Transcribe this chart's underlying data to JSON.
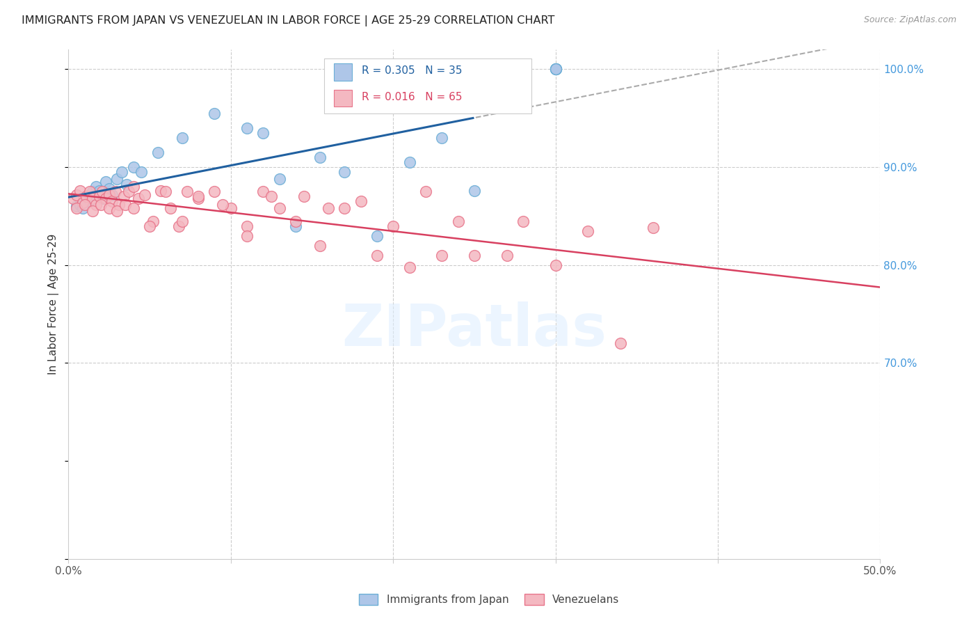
{
  "title": "IMMIGRANTS FROM JAPAN VS VENEZUELAN IN LABOR FORCE | AGE 25-29 CORRELATION CHART",
  "source_text": "Source: ZipAtlas.com",
  "ylabel": "In Labor Force | Age 25-29",
  "xlim": [
    0.0,
    0.5
  ],
  "ylim": [
    0.5,
    1.02
  ],
  "grid_color": "#cccccc",
  "background_color": "#ffffff",
  "watermark": "ZIPatlas",
  "japan_color": "#aec6e8",
  "japan_edge_color": "#6baed6",
  "venezuela_color": "#f4b8c1",
  "venezuela_edge_color": "#e8748a",
  "japan_R": 0.305,
  "japan_N": 35,
  "venezuela_R": 0.016,
  "venezuela_N": 65,
  "japan_line_color": "#2060a0",
  "venezuela_line_color": "#d84060",
  "japan_trend_dashed_color": "#aaaaaa",
  "legend_R_color": "#2060a0",
  "legend_R2_color": "#d84060",
  "japan_x": [
    0.005,
    0.007,
    0.009,
    0.011,
    0.013,
    0.015,
    0.017,
    0.019,
    0.021,
    0.023,
    0.025,
    0.027,
    0.03,
    0.033,
    0.036,
    0.04,
    0.045,
    0.055,
    0.07,
    0.09,
    0.11,
    0.12,
    0.13,
    0.14,
    0.155,
    0.17,
    0.19,
    0.21,
    0.23,
    0.25,
    0.3,
    0.3,
    0.3,
    0.3,
    0.3
  ],
  "japan_y": [
    0.86,
    0.862,
    0.858,
    0.87,
    0.866,
    0.875,
    0.88,
    0.876,
    0.868,
    0.885,
    0.878,
    0.872,
    0.888,
    0.895,
    0.882,
    0.9,
    0.895,
    0.915,
    0.93,
    0.955,
    0.94,
    0.935,
    0.888,
    0.84,
    0.91,
    0.895,
    0.83,
    0.905,
    0.93,
    0.876,
    1.0,
    1.0,
    1.0,
    1.0,
    1.0
  ],
  "venezuela_x": [
    0.003,
    0.005,
    0.007,
    0.009,
    0.011,
    0.013,
    0.015,
    0.017,
    0.019,
    0.021,
    0.023,
    0.025,
    0.027,
    0.029,
    0.031,
    0.034,
    0.037,
    0.04,
    0.043,
    0.047,
    0.052,
    0.057,
    0.063,
    0.068,
    0.073,
    0.08,
    0.09,
    0.1,
    0.11,
    0.12,
    0.13,
    0.145,
    0.16,
    0.18,
    0.2,
    0.22,
    0.24,
    0.28,
    0.32,
    0.36,
    0.005,
    0.01,
    0.015,
    0.02,
    0.025,
    0.03,
    0.035,
    0.04,
    0.05,
    0.06,
    0.07,
    0.08,
    0.095,
    0.11,
    0.125,
    0.14,
    0.155,
    0.17,
    0.19,
    0.21,
    0.23,
    0.25,
    0.27,
    0.3,
    0.34
  ],
  "venezuela_y": [
    0.868,
    0.872,
    0.876,
    0.864,
    0.87,
    0.875,
    0.868,
    0.862,
    0.87,
    0.875,
    0.868,
    0.872,
    0.865,
    0.875,
    0.862,
    0.87,
    0.875,
    0.88,
    0.868,
    0.872,
    0.845,
    0.876,
    0.858,
    0.84,
    0.875,
    0.868,
    0.875,
    0.858,
    0.84,
    0.875,
    0.858,
    0.87,
    0.858,
    0.865,
    0.84,
    0.875,
    0.845,
    0.845,
    0.835,
    0.838,
    0.858,
    0.862,
    0.855,
    0.862,
    0.858,
    0.855,
    0.862,
    0.858,
    0.84,
    0.875,
    0.845,
    0.87,
    0.862,
    0.83,
    0.87,
    0.845,
    0.82,
    0.858,
    0.81,
    0.798,
    0.81,
    0.81,
    0.81,
    0.8,
    0.72
  ]
}
